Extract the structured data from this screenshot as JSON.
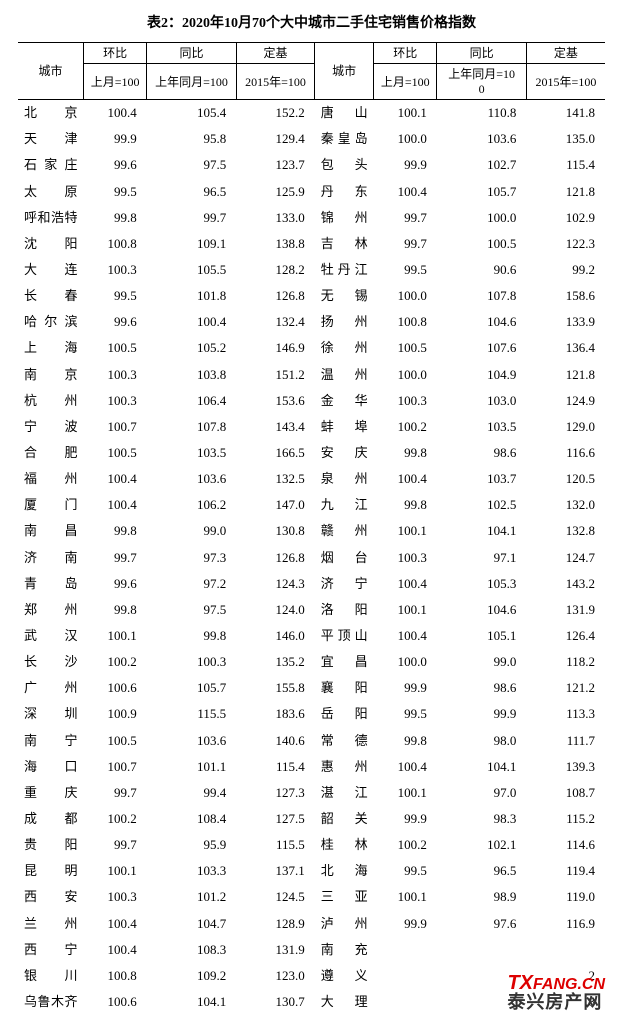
{
  "title": "表2：2020年10月70个大中城市二手住宅销售价格指数",
  "headers": {
    "city": "城市",
    "hb": "环比",
    "tb": "同比",
    "dj": "定基",
    "hb_sub": "上月=100",
    "tb_sub": "上年同月=100",
    "tb_sub_wrap1": "上年同月=10",
    "tb_sub_wrap2": "0",
    "dj_sub": "2015年=100"
  },
  "colors": {
    "text": "#000000",
    "background": "#ffffff",
    "border": "#000000",
    "watermark_red": "#d00",
    "watermark_dark": "#333"
  },
  "left": [
    {
      "c": "北京",
      "hb": "100.4",
      "tb": "105.4",
      "dj": "152.2"
    },
    {
      "c": "天津",
      "hb": "99.9",
      "tb": "95.8",
      "dj": "129.4"
    },
    {
      "c": "石家庄",
      "hb": "99.6",
      "tb": "97.5",
      "dj": "123.7"
    },
    {
      "c": "太原",
      "hb": "99.5",
      "tb": "96.5",
      "dj": "125.9"
    },
    {
      "c": "呼和浩特",
      "hb": "99.8",
      "tb": "99.7",
      "dj": "133.0"
    },
    {
      "c": "沈阳",
      "hb": "100.8",
      "tb": "109.1",
      "dj": "138.8"
    },
    {
      "c": "大连",
      "hb": "100.3",
      "tb": "105.5",
      "dj": "128.2"
    },
    {
      "c": "长春",
      "hb": "99.5",
      "tb": "101.8",
      "dj": "126.8"
    },
    {
      "c": "哈尔滨",
      "hb": "99.6",
      "tb": "100.4",
      "dj": "132.4"
    },
    {
      "c": "上海",
      "hb": "100.5",
      "tb": "105.2",
      "dj": "146.9"
    },
    {
      "c": "南京",
      "hb": "100.3",
      "tb": "103.8",
      "dj": "151.2"
    },
    {
      "c": "杭州",
      "hb": "100.3",
      "tb": "106.4",
      "dj": "153.6"
    },
    {
      "c": "宁波",
      "hb": "100.7",
      "tb": "107.8",
      "dj": "143.4"
    },
    {
      "c": "合肥",
      "hb": "100.5",
      "tb": "103.5",
      "dj": "166.5"
    },
    {
      "c": "福州",
      "hb": "100.4",
      "tb": "103.6",
      "dj": "132.5"
    },
    {
      "c": "厦门",
      "hb": "100.4",
      "tb": "106.2",
      "dj": "147.0"
    },
    {
      "c": "南昌",
      "hb": "99.8",
      "tb": "99.0",
      "dj": "130.8"
    },
    {
      "c": "济南",
      "hb": "99.7",
      "tb": "97.3",
      "dj": "126.8"
    },
    {
      "c": "青岛",
      "hb": "99.6",
      "tb": "97.2",
      "dj": "124.3"
    },
    {
      "c": "郑州",
      "hb": "99.8",
      "tb": "97.5",
      "dj": "124.0"
    },
    {
      "c": "武汉",
      "hb": "100.1",
      "tb": "99.8",
      "dj": "146.0"
    },
    {
      "c": "长沙",
      "hb": "100.2",
      "tb": "100.3",
      "dj": "135.2"
    },
    {
      "c": "广州",
      "hb": "100.6",
      "tb": "105.7",
      "dj": "155.8"
    },
    {
      "c": "深圳",
      "hb": "100.9",
      "tb": "115.5",
      "dj": "183.6"
    },
    {
      "c": "南宁",
      "hb": "100.5",
      "tb": "103.6",
      "dj": "140.6"
    },
    {
      "c": "海口",
      "hb": "100.7",
      "tb": "101.1",
      "dj": "115.4"
    },
    {
      "c": "重庆",
      "hb": "99.7",
      "tb": "99.4",
      "dj": "127.3"
    },
    {
      "c": "成都",
      "hb": "100.2",
      "tb": "108.4",
      "dj": "127.5"
    },
    {
      "c": "贵阳",
      "hb": "99.7",
      "tb": "95.9",
      "dj": "115.5"
    },
    {
      "c": "昆明",
      "hb": "100.1",
      "tb": "103.3",
      "dj": "137.1"
    },
    {
      "c": "西安",
      "hb": "100.3",
      "tb": "101.2",
      "dj": "124.5"
    },
    {
      "c": "兰州",
      "hb": "100.4",
      "tb": "104.7",
      "dj": "128.9"
    },
    {
      "c": "西宁",
      "hb": "100.4",
      "tb": "108.3",
      "dj": "131.9"
    },
    {
      "c": "银川",
      "hb": "100.8",
      "tb": "109.2",
      "dj": "123.0"
    },
    {
      "c": "乌鲁木齐",
      "hb": "100.6",
      "tb": "104.1",
      "dj": "130.7"
    }
  ],
  "right": [
    {
      "c": "唐山",
      "hb": "100.1",
      "tb": "110.8",
      "dj": "141.8"
    },
    {
      "c": "秦皇岛",
      "hb": "100.0",
      "tb": "103.6",
      "dj": "135.0"
    },
    {
      "c": "包头",
      "hb": "99.9",
      "tb": "102.7",
      "dj": "115.4"
    },
    {
      "c": "丹东",
      "hb": "100.4",
      "tb": "105.7",
      "dj": "121.8"
    },
    {
      "c": "锦州",
      "hb": "99.7",
      "tb": "100.0",
      "dj": "102.9"
    },
    {
      "c": "吉林",
      "hb": "99.7",
      "tb": "100.5",
      "dj": "122.3"
    },
    {
      "c": "牡丹江",
      "hb": "99.5",
      "tb": "90.6",
      "dj": "99.2"
    },
    {
      "c": "无锡",
      "hb": "100.0",
      "tb": "107.8",
      "dj": "158.6"
    },
    {
      "c": "扬州",
      "hb": "100.8",
      "tb": "104.6",
      "dj": "133.9"
    },
    {
      "c": "徐州",
      "hb": "100.5",
      "tb": "107.6",
      "dj": "136.4"
    },
    {
      "c": "温州",
      "hb": "100.0",
      "tb": "104.9",
      "dj": "121.8"
    },
    {
      "c": "金华",
      "hb": "100.3",
      "tb": "103.0",
      "dj": "124.9"
    },
    {
      "c": "蚌埠",
      "hb": "100.2",
      "tb": "103.5",
      "dj": "129.0"
    },
    {
      "c": "安庆",
      "hb": "99.8",
      "tb": "98.6",
      "dj": "116.6"
    },
    {
      "c": "泉州",
      "hb": "100.4",
      "tb": "103.7",
      "dj": "120.5"
    },
    {
      "c": "九江",
      "hb": "99.8",
      "tb": "102.5",
      "dj": "132.0"
    },
    {
      "c": "赣州",
      "hb": "100.1",
      "tb": "104.1",
      "dj": "132.8"
    },
    {
      "c": "烟台",
      "hb": "100.3",
      "tb": "97.1",
      "dj": "124.7"
    },
    {
      "c": "济宁",
      "hb": "100.4",
      "tb": "105.3",
      "dj": "143.2"
    },
    {
      "c": "洛阳",
      "hb": "100.1",
      "tb": "104.6",
      "dj": "131.9"
    },
    {
      "c": "平顶山",
      "hb": "100.4",
      "tb": "105.1",
      "dj": "126.4"
    },
    {
      "c": "宜昌",
      "hb": "100.0",
      "tb": "99.0",
      "dj": "118.2"
    },
    {
      "c": "襄阳",
      "hb": "99.9",
      "tb": "98.6",
      "dj": "121.2"
    },
    {
      "c": "岳阳",
      "hb": "99.5",
      "tb": "99.9",
      "dj": "113.3"
    },
    {
      "c": "常德",
      "hb": "99.8",
      "tb": "98.0",
      "dj": "111.7"
    },
    {
      "c": "惠州",
      "hb": "100.4",
      "tb": "104.1",
      "dj": "139.3"
    },
    {
      "c": "湛江",
      "hb": "100.1",
      "tb": "97.0",
      "dj": "108.7"
    },
    {
      "c": "韶关",
      "hb": "99.9",
      "tb": "98.3",
      "dj": "115.2"
    },
    {
      "c": "桂林",
      "hb": "100.2",
      "tb": "102.1",
      "dj": "114.6"
    },
    {
      "c": "北海",
      "hb": "99.5",
      "tb": "96.5",
      "dj": "119.4"
    },
    {
      "c": "三亚",
      "hb": "100.1",
      "tb": "98.9",
      "dj": "119.0"
    },
    {
      "c": "泸州",
      "hb": "99.9",
      "tb": "97.6",
      "dj": "116.9"
    },
    {
      "c": "南充",
      "hb": "",
      "tb": "",
      "dj": ""
    },
    {
      "c": "遵义",
      "hb": "",
      "tb": "",
      "dj": ".2"
    },
    {
      "c": "大理",
      "hb": "",
      "tb": "",
      "dj": ".8"
    }
  ],
  "watermark": {
    "line1_tx": "TX",
    "line1_rest": "FANG.CN",
    "line2": "泰兴房产网"
  }
}
